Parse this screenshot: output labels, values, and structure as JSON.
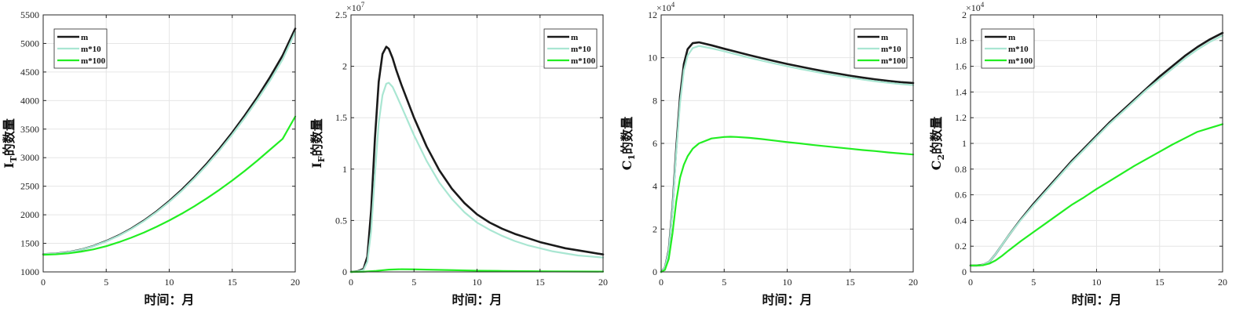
{
  "colors": {
    "m": "#1a1a1a",
    "m10": "#a9e6d2",
    "m100": "#22ee22",
    "grid": "#e6e6e6",
    "axis": "#262626"
  },
  "chart_data": [
    {
      "type": "line",
      "ylabel_main": "I",
      "ylabel_sub": "T",
      "ylabel_rest": "的数量",
      "xlabel": "时间：月",
      "multiplier_base": "",
      "multiplier_exp": "",
      "xlim": [
        0,
        20
      ],
      "ylim": [
        1000,
        5500
      ],
      "xticks": [
        0,
        5,
        10,
        15,
        20
      ],
      "yticks": [
        1000,
        1500,
        2000,
        2500,
        3000,
        3500,
        4000,
        4500,
        5000,
        5500
      ],
      "ytick_labels": [
        "1000",
        "1500",
        "2000",
        "2500",
        "3000",
        "3500",
        "4000",
        "4500",
        "5000",
        "5500"
      ],
      "legend_position": "top-left",
      "grid": true,
      "series": [
        {
          "name": "m",
          "color_key": "m",
          "width": 2.6,
          "x": [
            0,
            1,
            2,
            3,
            4,
            5,
            6,
            7,
            8,
            9,
            10,
            11,
            12,
            13,
            14,
            15,
            16,
            17,
            18,
            19,
            20
          ],
          "y": [
            1310,
            1320,
            1345,
            1390,
            1455,
            1540,
            1640,
            1760,
            1900,
            2060,
            2240,
            2440,
            2660,
            2900,
            3160,
            3440,
            3740,
            4060,
            4410,
            4790,
            5260
          ]
        },
        {
          "name": "m*10",
          "color_key": "m10",
          "width": 2.2,
          "x": [
            0,
            1,
            2,
            3,
            4,
            5,
            6,
            7,
            8,
            9,
            10,
            11,
            12,
            13,
            14,
            15,
            16,
            17,
            18,
            19,
            20
          ],
          "y": [
            1310,
            1320,
            1344,
            1388,
            1452,
            1535,
            1633,
            1752,
            1890,
            2048,
            2225,
            2420,
            2638,
            2875,
            3130,
            3405,
            3700,
            4015,
            4350,
            4720,
            5200
          ]
        },
        {
          "name": "m*100",
          "color_key": "m100",
          "width": 2.2,
          "x": [
            0,
            1,
            2,
            3,
            4,
            5,
            6,
            7,
            8,
            9,
            10,
            11,
            12,
            13,
            14,
            15,
            16,
            17,
            18,
            19,
            20
          ],
          "y": [
            1300,
            1308,
            1325,
            1355,
            1395,
            1450,
            1520,
            1600,
            1690,
            1790,
            1900,
            2020,
            2150,
            2290,
            2440,
            2600,
            2770,
            2950,
            3140,
            3330,
            3720
          ]
        }
      ]
    },
    {
      "type": "line",
      "ylabel_main": "I",
      "ylabel_sub": "F",
      "ylabel_rest": "的数量",
      "xlabel": "时间：月",
      "multiplier_base": "×10",
      "multiplier_exp": "7",
      "xlim": [
        0,
        20
      ],
      "ylim": [
        0,
        2.5
      ],
      "xticks": [
        0,
        5,
        10,
        15,
        20
      ],
      "yticks": [
        0,
        0.5,
        1,
        1.5,
        2,
        2.5
      ],
      "ytick_labels": [
        "0",
        "0.5",
        "1",
        "1.5",
        "2",
        "2.5"
      ],
      "legend_position": "top-right",
      "grid": true,
      "series": [
        {
          "name": "m",
          "color_key": "m",
          "width": 2.6,
          "x": [
            0,
            0.5,
            1,
            1.3,
            1.6,
            1.9,
            2.2,
            2.5,
            2.8,
            3,
            3.3,
            3.6,
            4,
            5,
            6,
            7,
            8,
            9,
            10,
            11,
            12,
            13,
            14,
            15,
            16,
            17,
            18,
            19,
            20
          ],
          "y": [
            0,
            0.005,
            0.03,
            0.15,
            0.6,
            1.3,
            1.85,
            2.12,
            2.19,
            2.17,
            2.08,
            1.96,
            1.82,
            1.5,
            1.22,
            0.99,
            0.81,
            0.67,
            0.56,
            0.48,
            0.42,
            0.37,
            0.33,
            0.29,
            0.26,
            0.23,
            0.21,
            0.19,
            0.17
          ]
        },
        {
          "name": "m*10",
          "color_key": "m10",
          "width": 2.2,
          "x": [
            0,
            0.5,
            1,
            1.3,
            1.6,
            1.9,
            2.2,
            2.5,
            2.8,
            3,
            3.3,
            3.6,
            4,
            5,
            6,
            7,
            8,
            9,
            10,
            11,
            12,
            13,
            14,
            15,
            16,
            17,
            18,
            19,
            20
          ],
          "y": [
            0,
            0.004,
            0.02,
            0.1,
            0.4,
            0.95,
            1.45,
            1.72,
            1.83,
            1.84,
            1.8,
            1.72,
            1.61,
            1.33,
            1.08,
            0.87,
            0.71,
            0.58,
            0.48,
            0.41,
            0.35,
            0.3,
            0.26,
            0.23,
            0.2,
            0.18,
            0.16,
            0.15,
            0.14
          ]
        },
        {
          "name": "m*100",
          "color_key": "m100",
          "width": 2.2,
          "x": [
            0,
            1,
            2,
            3,
            4,
            5,
            6,
            8,
            10,
            12,
            14,
            16,
            18,
            20
          ],
          "y": [
            0,
            0.002,
            0.01,
            0.022,
            0.026,
            0.025,
            0.022,
            0.017,
            0.012,
            0.009,
            0.007,
            0.005,
            0.004,
            0.003
          ]
        }
      ]
    },
    {
      "type": "line",
      "ylabel_main": "C",
      "ylabel_sub": "1",
      "ylabel_rest": "的数量",
      "xlabel": "时间：月",
      "multiplier_base": "×10",
      "multiplier_exp": "4",
      "xlim": [
        0,
        20
      ],
      "ylim": [
        0,
        12
      ],
      "xticks": [
        0,
        5,
        10,
        15,
        20
      ],
      "yticks": [
        0,
        2,
        4,
        6,
        8,
        10,
        12
      ],
      "ytick_labels": [
        "0",
        "2",
        "4",
        "6",
        "8",
        "10",
        "12"
      ],
      "legend_position": "top-right",
      "grid": true,
      "series": [
        {
          "name": "m",
          "color_key": "m",
          "width": 2.6,
          "x": [
            0,
            0.3,
            0.6,
            0.9,
            1.2,
            1.5,
            1.8,
            2.1,
            2.5,
            3,
            4,
            5,
            6,
            7,
            8,
            9,
            10,
            11,
            12,
            13,
            14,
            15,
            16,
            17,
            18,
            19,
            20
          ],
          "y": [
            0,
            0.2,
            1.0,
            3.0,
            5.8,
            8.2,
            9.7,
            10.4,
            10.68,
            10.72,
            10.58,
            10.42,
            10.27,
            10.12,
            9.98,
            9.84,
            9.71,
            9.59,
            9.47,
            9.36,
            9.26,
            9.16,
            9.07,
            8.99,
            8.92,
            8.86,
            8.82
          ]
        },
        {
          "name": "m*10",
          "color_key": "m10",
          "width": 2.2,
          "x": [
            0,
            0.3,
            0.6,
            0.9,
            1.2,
            1.5,
            1.8,
            2.1,
            2.5,
            3,
            4,
            5,
            6,
            7,
            8,
            9,
            10,
            11,
            12,
            13,
            14,
            15,
            16,
            17,
            18,
            19,
            20
          ],
          "y": [
            0,
            0.2,
            0.95,
            2.9,
            5.6,
            7.9,
            9.4,
            10.1,
            10.45,
            10.55,
            10.44,
            10.3,
            10.15,
            10.0,
            9.86,
            9.73,
            9.6,
            9.48,
            9.37,
            9.26,
            9.16,
            9.07,
            8.98,
            8.9,
            8.83,
            8.77,
            8.72
          ]
        },
        {
          "name": "m*100",
          "color_key": "m100",
          "width": 2.2,
          "x": [
            0,
            0.3,
            0.6,
            0.9,
            1.2,
            1.5,
            1.8,
            2.1,
            2.5,
            3,
            4,
            5,
            5.5,
            6,
            7,
            8,
            9,
            10,
            11,
            12,
            13,
            14,
            15,
            16,
            17,
            18,
            19,
            20
          ],
          "y": [
            0,
            0.1,
            0.6,
            1.8,
            3.3,
            4.4,
            5.0,
            5.4,
            5.75,
            6.0,
            6.23,
            6.3,
            6.31,
            6.3,
            6.26,
            6.2,
            6.13,
            6.06,
            6.0,
            5.93,
            5.87,
            5.81,
            5.75,
            5.69,
            5.64,
            5.58,
            5.53,
            5.48
          ]
        }
      ]
    },
    {
      "type": "line",
      "ylabel_main": "C",
      "ylabel_sub": "2",
      "ylabel_rest": "的数量",
      "xlabel": "时间：月",
      "multiplier_base": "×10",
      "multiplier_exp": "4",
      "xlim": [
        0,
        20
      ],
      "ylim": [
        0,
        2
      ],
      "xticks": [
        0,
        5,
        10,
        15,
        20
      ],
      "yticks": [
        0,
        0.2,
        0.4,
        0.6,
        0.8,
        1,
        1.2,
        1.4,
        1.6,
        1.8,
        2
      ],
      "ytick_labels": [
        "0",
        "0.2",
        "0.4",
        "0.6",
        "0.8",
        "1",
        "1.2",
        "1.4",
        "1.6",
        "1.8",
        "2"
      ],
      "legend_position": "top-left",
      "grid": true,
      "series": [
        {
          "name": "m",
          "color_key": "m",
          "width": 2.6,
          "x": [
            0,
            0.5,
            1,
            1.5,
            2,
            2.5,
            3,
            4,
            5,
            6,
            7,
            8,
            9,
            10,
            11,
            12,
            13,
            14,
            15,
            16,
            17,
            18,
            19,
            20
          ],
          "y": [
            0.05,
            0.05,
            0.055,
            0.08,
            0.14,
            0.21,
            0.28,
            0.41,
            0.53,
            0.64,
            0.75,
            0.86,
            0.96,
            1.06,
            1.16,
            1.25,
            1.34,
            1.43,
            1.52,
            1.6,
            1.68,
            1.75,
            1.81,
            1.86
          ]
        },
        {
          "name": "m*10",
          "color_key": "m10",
          "width": 2.2,
          "x": [
            0,
            0.5,
            1,
            1.5,
            2,
            2.5,
            3,
            4,
            5,
            6,
            7,
            8,
            9,
            10,
            11,
            12,
            13,
            14,
            15,
            16,
            17,
            18,
            19,
            20
          ],
          "y": [
            0.05,
            0.05,
            0.055,
            0.08,
            0.14,
            0.21,
            0.28,
            0.405,
            0.52,
            0.63,
            0.74,
            0.85,
            0.95,
            1.05,
            1.15,
            1.24,
            1.33,
            1.42,
            1.5,
            1.58,
            1.66,
            1.73,
            1.79,
            1.84
          ]
        },
        {
          "name": "m*100",
          "color_key": "m100",
          "width": 2.2,
          "x": [
            0,
            0.5,
            1,
            1.5,
            2,
            2.5,
            3,
            4,
            5,
            6,
            7,
            8,
            9,
            10,
            11,
            12,
            13,
            14,
            15,
            16,
            17,
            18,
            19,
            20
          ],
          "y": [
            0.05,
            0.05,
            0.052,
            0.065,
            0.09,
            0.125,
            0.165,
            0.24,
            0.31,
            0.38,
            0.45,
            0.52,
            0.58,
            0.645,
            0.705,
            0.765,
            0.825,
            0.88,
            0.935,
            0.99,
            1.04,
            1.09,
            1.12,
            1.15
          ]
        }
      ]
    }
  ]
}
